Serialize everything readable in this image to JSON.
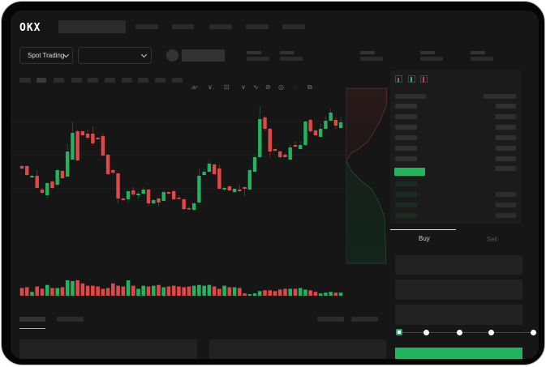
{
  "brand": {
    "logo": "OKX"
  },
  "market_bar": {
    "mode_dropdown": "Spot Trading",
    "pair_dropdown": ""
  },
  "trade_form": {
    "tabs": [
      {
        "label": "Buy",
        "active": true
      },
      {
        "label": "Sell",
        "active": false
      }
    ],
    "slider_percent": 0
  },
  "colors": {
    "up": "#22b35e",
    "down": "#e04848",
    "background": "#161616"
  },
  "icons": {
    "dropdown": "chevron-down-icon",
    "orderbook_views": [
      "orderbook-both-icon",
      "orderbook-buy-icon",
      "orderbook-sell-icon"
    ]
  },
  "chart_data": {
    "type": "candlestick",
    "candles": [
      [
        97,
        94,
        98,
        93
      ],
      [
        97,
        86,
        98,
        85
      ],
      [
        83,
        85,
        86,
        83
      ],
      [
        85,
        70,
        92,
        69
      ],
      [
        68,
        64,
        70,
        62
      ],
      [
        61,
        76,
        77,
        57
      ],
      [
        78,
        70,
        79,
        69
      ],
      [
        74,
        92,
        94,
        72
      ],
      [
        91,
        82,
        92,
        81
      ],
      [
        84,
        115,
        124,
        84
      ],
      [
        105,
        138,
        152,
        105
      ],
      [
        140,
        104,
        142,
        103
      ],
      [
        140,
        135,
        141,
        134
      ],
      [
        137,
        132,
        142,
        130
      ],
      [
        137,
        125,
        146,
        123
      ],
      [
        132,
        130,
        133,
        130
      ],
      [
        134,
        110,
        137,
        109
      ],
      [
        111,
        87,
        112,
        86
      ],
      [
        92,
        89,
        93,
        86
      ],
      [
        88,
        57,
        89,
        51
      ],
      [
        57,
        55,
        58,
        54
      ],
      [
        56,
        66,
        67,
        51
      ],
      [
        67,
        62,
        71,
        60
      ],
      [
        61,
        63,
        65,
        56
      ],
      [
        63,
        68,
        71,
        62
      ],
      [
        68,
        51,
        69,
        48
      ],
      [
        51,
        55,
        56,
        50
      ],
      [
        57,
        52,
        58,
        47
      ],
      [
        54,
        65,
        67,
        53
      ],
      [
        65,
        63,
        66,
        62
      ],
      [
        66,
        56,
        68,
        55
      ],
      [
        58,
        57,
        60,
        56
      ],
      [
        56,
        44,
        57,
        43
      ],
      [
        45,
        44,
        47,
        43
      ],
      [
        43,
        51,
        52,
        42
      ],
      [
        52,
        85,
        94,
        50
      ],
      [
        86,
        90,
        93,
        85
      ],
      [
        90,
        100,
        105,
        89
      ],
      [
        99,
        87,
        100,
        86
      ],
      [
        94,
        69,
        99,
        68
      ],
      [
        68,
        70,
        72,
        66
      ],
      [
        72,
        67,
        73,
        66
      ],
      [
        65,
        69,
        70,
        64
      ],
      [
        68,
        66,
        74,
        65
      ],
      [
        71,
        69,
        72,
        60
      ],
      [
        68,
        92,
        95,
        67
      ],
      [
        90,
        108,
        111,
        89
      ],
      [
        108,
        155,
        171,
        107
      ],
      [
        157,
        143,
        159,
        140
      ],
      [
        143,
        115,
        144,
        107
      ],
      [
        118,
        116,
        119,
        115
      ],
      [
        115,
        108,
        116,
        106
      ],
      [
        111,
        108,
        113,
        108
      ],
      [
        105,
        120,
        124,
        105
      ],
      [
        123,
        121,
        128,
        120
      ],
      [
        118,
        123,
        128,
        118
      ],
      [
        123,
        152,
        153,
        122
      ],
      [
        154,
        140,
        155,
        138
      ],
      [
        141,
        135,
        142,
        134
      ],
      [
        133,
        143,
        150,
        133
      ],
      [
        143,
        153,
        158,
        143
      ],
      [
        153,
        163,
        168,
        153
      ],
      [
        154,
        147,
        157,
        143
      ],
      [
        144,
        151,
        158,
        144
      ]
    ],
    "volumes": [
      10,
      11,
      5,
      12,
      9,
      14,
      10,
      10,
      11,
      20,
      19,
      20,
      16,
      13,
      13,
      12,
      9,
      10,
      16,
      13,
      12,
      20,
      13,
      9,
      13,
      12,
      13,
      14,
      11,
      12,
      13,
      12,
      11,
      12,
      13,
      14,
      13,
      14,
      12,
      9,
      13,
      11,
      11,
      10,
      3,
      2,
      3,
      6,
      7,
      7,
      6,
      8,
      9,
      9,
      9,
      10,
      8,
      7,
      5,
      3,
      4,
      5,
      4,
      4
    ]
  }
}
